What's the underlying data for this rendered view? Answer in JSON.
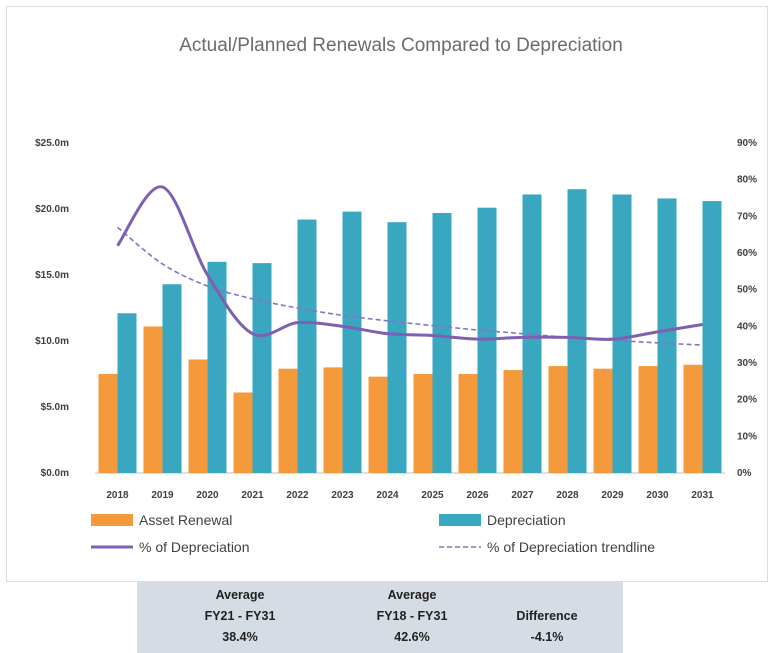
{
  "colors": {
    "asset_renewal": "#f59a3c",
    "depreciation": "#3aa7c0",
    "pct_line": "#7e5fb2",
    "trendline": "#8a72bf",
    "summary_bg": "#d6dce4"
  },
  "chart_data": {
    "type": "bar",
    "title": "Actual/Planned Renewals Compared to Depreciation",
    "categories": [
      "2018",
      "2019",
      "2020",
      "2021",
      "2022",
      "2023",
      "2024",
      "2025",
      "2026",
      "2027",
      "2028",
      "2029",
      "2030",
      "2031"
    ],
    "series": [
      {
        "name": "Asset Renewal",
        "type": "bar",
        "axis": "left",
        "values": [
          7.5,
          11.1,
          8.6,
          6.1,
          7.9,
          8.0,
          7.3,
          7.5,
          7.5,
          7.8,
          8.1,
          7.9,
          8.1,
          8.2
        ]
      },
      {
        "name": "Depreciation",
        "type": "bar",
        "axis": "left",
        "values": [
          12.1,
          14.3,
          16.0,
          15.9,
          19.2,
          19.8,
          19.0,
          19.7,
          20.1,
          21.1,
          21.5,
          21.1,
          20.8,
          20.6
        ]
      },
      {
        "name": "% of Depreciation",
        "type": "line",
        "axis": "right",
        "values": [
          62,
          78,
          54,
          38,
          41,
          40,
          38,
          37.5,
          36.5,
          37,
          37,
          36.5,
          38.5,
          40.5
        ]
      },
      {
        "name": "% of Depreciation trendline",
        "type": "line-dashed",
        "axis": "right",
        "values": [
          67,
          57,
          51,
          47.5,
          45,
          43,
          41.5,
          40.2,
          39,
          38,
          37,
          36.2,
          35.5,
          34.9
        ]
      }
    ],
    "y_left": {
      "min": 0,
      "max": 25,
      "ticks": [
        "$0.0m",
        "$5.0m",
        "$10.0m",
        "$15.0m",
        "$20.0m",
        "$25.0m"
      ]
    },
    "y_right": {
      "min": 0,
      "max": 90,
      "ticks": [
        "0%",
        "10%",
        "20%",
        "30%",
        "40%",
        "50%",
        "60%",
        "70%",
        "80%",
        "90%"
      ]
    },
    "grid": false,
    "legend": "bottom"
  },
  "summary": {
    "col1": {
      "line1": "Average",
      "line2": "FY21 - FY31",
      "value": "38.4%"
    },
    "col2": {
      "line1": "Average",
      "line2": "FY18 - FY31",
      "value": "42.6%"
    },
    "col3": {
      "label": "Difference",
      "value": "-4.1%"
    }
  }
}
